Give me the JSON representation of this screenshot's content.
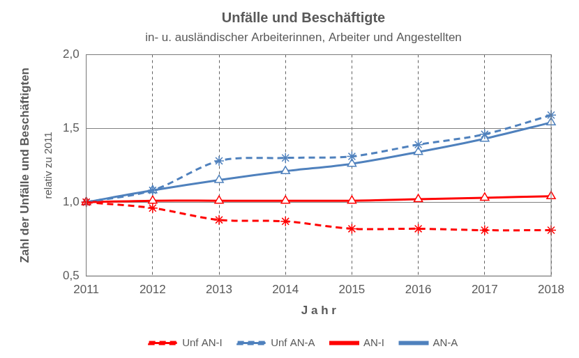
{
  "chart_data": {
    "type": "line",
    "title": "Unfälle und Beschäftigte",
    "subtitle": "in- u. ausländischer Arbeiterinnen, Arbeiter und Angestellten",
    "x_label": "J a h r",
    "y_label": "Zahl der Unfälle und Beschäftigten",
    "y_sublabel": "relativ zu 2011",
    "categories": [
      "2011",
      "2012",
      "2013",
      "2014",
      "2015",
      "2016",
      "2017",
      "2018"
    ],
    "series": [
      {
        "name": "Unf AN-I",
        "color": "#ff0000",
        "line_style": "dashed",
        "marker": "star",
        "values": [
          1.0,
          0.96,
          0.88,
          0.87,
          0.82,
          0.82,
          0.81,
          0.81
        ]
      },
      {
        "name": "Unf AN-A",
        "color": "#4f81bd",
        "line_style": "dashed",
        "marker": "star",
        "values": [
          1.0,
          1.08,
          1.28,
          1.3,
          1.31,
          1.39,
          1.46,
          1.59
        ]
      },
      {
        "name": "AN-I",
        "color": "#ff0000",
        "line_style": "solid",
        "marker": "triangle",
        "values": [
          1.0,
          1.01,
          1.01,
          1.01,
          1.01,
          1.02,
          1.03,
          1.04
        ]
      },
      {
        "name": "AN-A",
        "color": "#4f81bd",
        "line_style": "solid",
        "marker": "triangle",
        "values": [
          1.0,
          1.08,
          1.15,
          1.21,
          1.26,
          1.34,
          1.43,
          1.54
        ]
      }
    ],
    "ylim": [
      0.5,
      2.0
    ],
    "yticks": [
      {
        "value": 0.5,
        "label": "0,5"
      },
      {
        "value": 1.0,
        "label": "1,0"
      },
      {
        "value": 1.5,
        "label": "1,5"
      },
      {
        "value": 2.0,
        "label": "2,0"
      }
    ],
    "grid": true,
    "legend": "bottom"
  }
}
